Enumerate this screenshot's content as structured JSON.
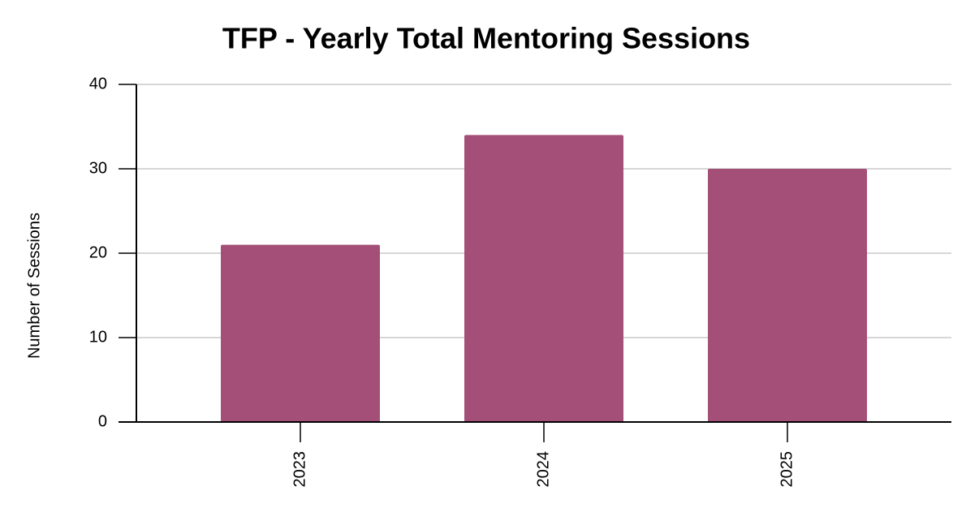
{
  "chart_data": {
    "type": "bar",
    "title": "TFP - Yearly Total Mentoring Sessions",
    "y_label": "Number of Sessions",
    "categories": [
      "2023",
      "2024",
      "2025"
    ],
    "values": [
      21,
      34,
      30
    ],
    "color": "#a44f77",
    "ylim": [
      0,
      40
    ],
    "yticks": [
      0,
      10,
      20,
      30,
      40
    ],
    "grid": true
  }
}
